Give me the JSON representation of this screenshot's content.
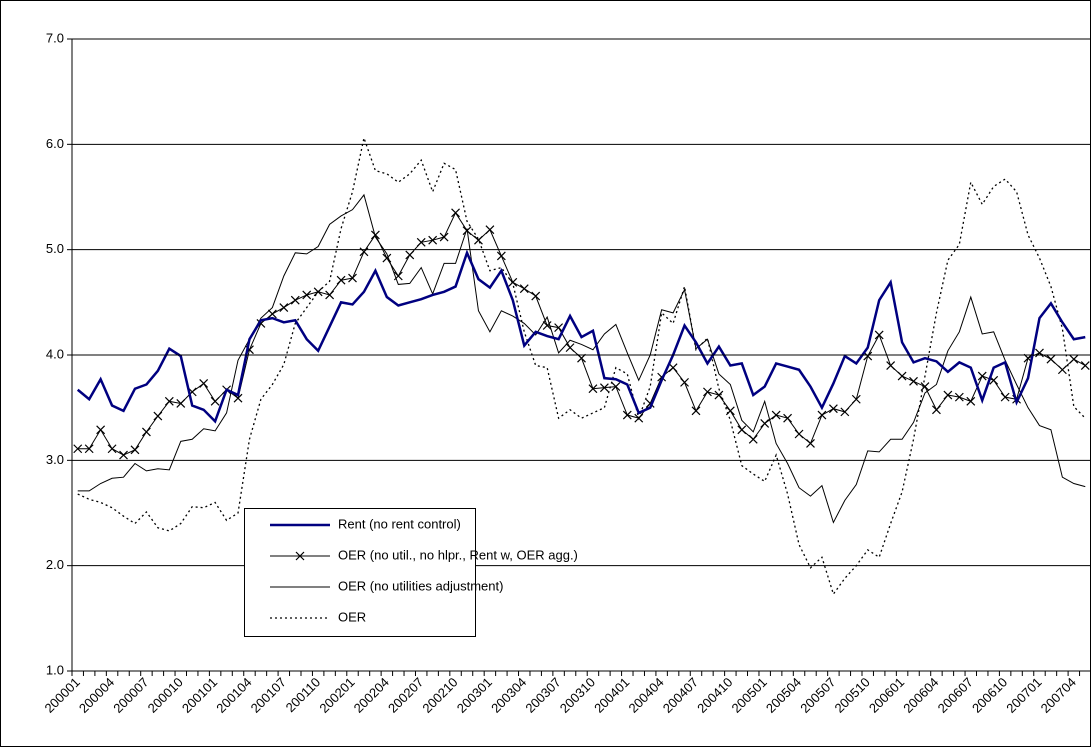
{
  "chart_data": {
    "type": "line",
    "categories": [
      "200001",
      null,
      null,
      "200004",
      null,
      null,
      "200007",
      null,
      null,
      "200010",
      null,
      null,
      "200101",
      null,
      null,
      "200104",
      null,
      null,
      "200107",
      null,
      null,
      "200110",
      null,
      null,
      "200201",
      null,
      null,
      "200204",
      null,
      null,
      "200207",
      null,
      null,
      "200210",
      null,
      null,
      "200301",
      null,
      null,
      "200304",
      null,
      null,
      "200307",
      null,
      null,
      "200310",
      null,
      null,
      "200401",
      null,
      null,
      "200404",
      null,
      null,
      "200407",
      null,
      null,
      "200410",
      null,
      null,
      "200501",
      null,
      null,
      "200504",
      null,
      null,
      "200507",
      null,
      null,
      "200510",
      null,
      null,
      "200601",
      null,
      null,
      "200604",
      null,
      null,
      "200607",
      null,
      null,
      "200610",
      null,
      null,
      "200701",
      null,
      null,
      "200704",
      null
    ],
    "ylim": [
      1,
      7
    ],
    "yticks": [
      {
        "value": 1,
        "label": "1.0"
      },
      {
        "value": 2,
        "label": "2.0"
      },
      {
        "value": 3,
        "label": "3.0"
      },
      {
        "value": 4,
        "label": "4.0"
      },
      {
        "value": 5,
        "label": "5.0"
      },
      {
        "value": 6,
        "label": "6.0"
      },
      {
        "value": 7,
        "label": "7.0"
      }
    ],
    "grid": true,
    "series": [
      {
        "name": "Rent (no rent control)",
        "color": "#000080",
        "values": [
          3.67,
          3.58,
          3.77,
          3.52,
          3.47,
          3.68,
          3.72,
          3.85,
          4.06,
          3.99,
          3.52,
          3.48,
          3.37,
          3.67,
          3.62,
          4.15,
          4.33,
          4.35,
          4.31,
          4.33,
          4.15,
          4.04,
          4.27,
          4.5,
          4.48,
          4.6,
          4.8,
          4.55,
          4.47,
          4.5,
          4.53,
          4.57,
          4.6,
          4.65,
          4.97,
          4.72,
          4.64,
          4.8,
          4.52,
          4.09,
          4.22,
          4.18,
          4.15,
          4.37,
          4.17,
          4.23,
          3.78,
          3.77,
          3.72,
          3.45,
          3.5,
          3.76,
          4.0,
          4.28,
          4.12,
          3.92,
          4.08,
          3.9,
          3.92,
          3.62,
          3.7,
          3.92,
          3.89,
          3.86,
          3.7,
          3.5,
          3.73,
          3.99,
          3.92,
          4.07,
          4.52,
          4.69,
          4.12,
          3.93,
          3.97,
          3.94,
          3.84,
          3.93,
          3.88,
          3.57,
          3.88,
          3.93,
          3.55,
          3.78,
          4.35,
          4.49,
          4.31,
          4.15,
          4.17
        ]
      },
      {
        "name": "OER (no util., no hlpr., Rent w, OER agg.)",
        "color": "#000000",
        "marker": "x",
        "values": [
          3.11,
          3.11,
          3.29,
          3.11,
          3.05,
          3.1,
          3.27,
          3.42,
          3.56,
          3.54,
          3.65,
          3.73,
          3.56,
          3.67,
          3.59,
          4.05,
          4.3,
          4.39,
          4.45,
          4.52,
          4.57,
          4.6,
          4.57,
          4.71,
          4.73,
          4.98,
          5.14,
          4.92,
          4.75,
          4.95,
          5.07,
          5.09,
          5.12,
          5.35,
          5.18,
          5.09,
          5.19,
          4.94,
          4.69,
          4.63,
          4.56,
          4.28,
          4.26,
          4.07,
          3.97,
          3.68,
          3.69,
          3.7,
          3.43,
          3.4,
          3.54,
          3.79,
          3.88,
          3.74,
          3.47,
          3.65,
          3.62,
          3.47,
          3.29,
          3.2,
          3.35,
          3.43,
          3.4,
          3.25,
          3.16,
          3.43,
          3.49,
          3.46,
          3.58,
          3.99,
          4.19,
          3.9,
          3.8,
          3.75,
          3.7,
          3.48,
          3.62,
          3.6,
          3.56,
          3.8,
          3.76,
          3.6,
          3.58,
          3.97,
          4.02,
          3.96,
          3.86,
          3.96,
          3.9
        ]
      },
      {
        "name": "OER (no utilities adjustment)",
        "color": "#000000",
        "values": [
          2.71,
          2.71,
          2.78,
          2.83,
          2.84,
          2.97,
          2.9,
          2.92,
          2.91,
          3.18,
          3.2,
          3.3,
          3.28,
          3.45,
          3.95,
          4.15,
          4.35,
          4.45,
          4.75,
          4.97,
          4.96,
          5.03,
          5.24,
          5.32,
          5.38,
          5.52,
          5.12,
          4.96,
          4.67,
          4.68,
          4.83,
          4.58,
          4.87,
          4.87,
          5.2,
          4.42,
          4.22,
          4.42,
          4.37,
          4.3,
          4.19,
          4.36,
          4.02,
          4.14,
          4.1,
          4.05,
          4.2,
          4.29,
          4.02,
          3.76,
          4.0,
          4.43,
          4.4,
          4.62,
          4.06,
          4.15,
          3.82,
          3.72,
          3.38,
          3.27,
          3.56,
          3.16,
          2.97,
          2.74,
          2.66,
          2.76,
          2.41,
          2.62,
          2.77,
          3.09,
          3.08,
          3.2,
          3.2,
          3.36,
          3.64,
          3.72,
          4.04,
          4.22,
          4.55,
          4.2,
          4.22,
          3.95,
          3.72,
          3.5,
          3.33,
          3.29,
          2.84,
          2.78,
          2.75
        ]
      },
      {
        "name": "OER",
        "color": "#000000",
        "dash": "dotted",
        "values": [
          2.68,
          2.63,
          2.6,
          2.55,
          2.47,
          2.4,
          2.51,
          2.36,
          2.33,
          2.4,
          2.56,
          2.55,
          2.6,
          2.43,
          2.5,
          3.2,
          3.58,
          3.72,
          3.91,
          4.3,
          4.45,
          4.6,
          4.7,
          5.2,
          5.55,
          6.06,
          5.75,
          5.72,
          5.64,
          5.72,
          5.85,
          5.55,
          5.82,
          5.76,
          5.27,
          5.1,
          4.8,
          4.83,
          4.68,
          4.22,
          3.9,
          3.88,
          3.4,
          3.48,
          3.4,
          3.45,
          3.5,
          3.88,
          3.82,
          3.4,
          3.7,
          4.4,
          4.3,
          4.65,
          4.05,
          4.16,
          3.68,
          3.38,
          2.95,
          2.87,
          2.8,
          3.05,
          2.68,
          2.2,
          1.98,
          2.08,
          1.73,
          1.88,
          2.0,
          2.15,
          2.08,
          2.4,
          2.7,
          3.2,
          3.8,
          4.4,
          4.9,
          5.05,
          5.64,
          5.43,
          5.6,
          5.67,
          5.55,
          5.14,
          4.92,
          4.65,
          4.25,
          3.51,
          3.4
        ]
      }
    ]
  }
}
